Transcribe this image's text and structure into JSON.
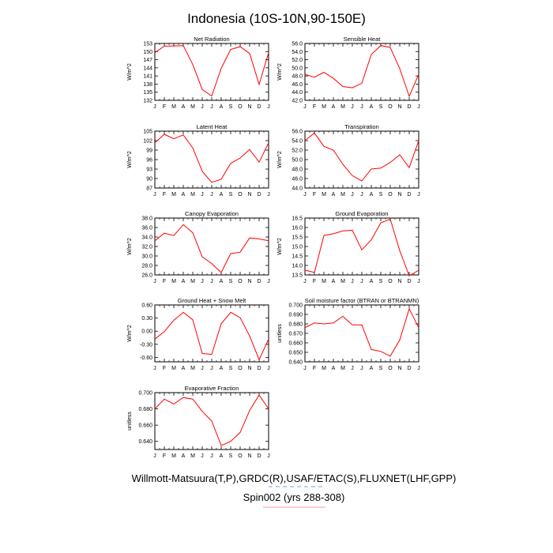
{
  "title": "Indonesia (10S-10N,90-150E)",
  "footer": {
    "line1": "Willmott-Matsuura(T,P),GRDC(R),USAF/ETAC(S),FLUXNET(LHF,GPP)",
    "line2": "Spin002 (yrs 288-308)"
  },
  "colors": {
    "series": "#ff0000",
    "axis": "#000000",
    "footer_line2_underline": "#ff9999",
    "footer_line1_dash": "#7799dd"
  },
  "chart_data": [
    {
      "type": "line",
      "title": "Net Radiation",
      "ylabel": "W/m^2",
      "categories": [
        "J",
        "F",
        "M",
        "A",
        "M",
        "J",
        "J",
        "A",
        "S",
        "O",
        "N",
        "D",
        "J"
      ],
      "ylim": [
        132,
        153
      ],
      "yticks": [
        "132",
        "135",
        "138",
        "141",
        "144",
        "147",
        "150",
        "153"
      ],
      "series": [
        {
          "values": [
            149.6,
            152.0,
            152.1,
            152.2,
            145.2,
            136.0,
            133.6,
            143.8,
            150.8,
            151.8,
            149.3,
            137.9,
            149.6
          ]
        }
      ]
    },
    {
      "type": "line",
      "title": "Sensible Heat",
      "ylabel": "W/m^2",
      "categories": [
        "J",
        "F",
        "M",
        "A",
        "M",
        "J",
        "J",
        "A",
        "S",
        "O",
        "N",
        "D",
        "J"
      ],
      "ylim": [
        42.0,
        56.0
      ],
      "yticks": [
        "42.0",
        "44.0",
        "46.0",
        "48.0",
        "50.0",
        "52.0",
        "54.0",
        "56.0"
      ],
      "series": [
        {
          "values": [
            48.4,
            47.7,
            48.9,
            47.4,
            45.4,
            45.1,
            46.2,
            53.3,
            55.5,
            55.0,
            49.8,
            43.0,
            48.4
          ]
        }
      ]
    },
    {
      "type": "line",
      "title": "Latent Heat",
      "ylabel": "W/m^2",
      "categories": [
        "J",
        "F",
        "M",
        "A",
        "M",
        "J",
        "J",
        "A",
        "S",
        "O",
        "N",
        "D",
        "J"
      ],
      "ylim": [
        87,
        105
      ],
      "yticks": [
        "87",
        "90",
        "93",
        "96",
        "99",
        "102",
        "105"
      ],
      "series": [
        {
          "values": [
            101.3,
            104.0,
            102.6,
            103.8,
            99.7,
            92.3,
            88.8,
            89.8,
            94.8,
            96.5,
            99.2,
            95.2,
            101.3
          ]
        }
      ]
    },
    {
      "type": "line",
      "title": "Transpiration",
      "ylabel": "W/m^2",
      "categories": [
        "J",
        "F",
        "M",
        "A",
        "M",
        "J",
        "J",
        "A",
        "S",
        "O",
        "N",
        "D",
        "J"
      ],
      "ylim": [
        44.0,
        56.0
      ],
      "yticks": [
        "44.0",
        "46.0",
        "48.0",
        "50.0",
        "52.0",
        "54.0",
        "56.0"
      ],
      "series": [
        {
          "values": [
            54.0,
            55.6,
            52.8,
            52.0,
            49.0,
            46.6,
            45.5,
            48.0,
            48.2,
            49.4,
            51.0,
            48.3,
            54.0
          ]
        }
      ]
    },
    {
      "type": "line",
      "title": "Canopy Evaporation",
      "ylabel": "W/m^2",
      "categories": [
        "J",
        "F",
        "M",
        "A",
        "M",
        "J",
        "J",
        "A",
        "S",
        "O",
        "N",
        "D",
        "J"
      ],
      "ylim": [
        26.0,
        38.0
      ],
      "yticks": [
        "26.0",
        "28.0",
        "30.0",
        "32.0",
        "34.0",
        "36.0",
        "38.0"
      ],
      "series": [
        {
          "values": [
            33.2,
            34.8,
            34.3,
            36.6,
            34.9,
            29.8,
            28.4,
            26.5,
            30.5,
            30.8,
            33.8,
            33.6,
            33.2
          ]
        }
      ]
    },
    {
      "type": "line",
      "title": "Ground Evaporation",
      "ylabel": "W/m^2",
      "categories": [
        "J",
        "F",
        "M",
        "A",
        "M",
        "J",
        "J",
        "A",
        "S",
        "O",
        "N",
        "D",
        "J"
      ],
      "ylim": [
        13.5,
        16.5
      ],
      "yticks": [
        "13.5",
        "14.0",
        "14.5",
        "15.0",
        "15.5",
        "16.0",
        "16.5"
      ],
      "series": [
        {
          "values": [
            13.75,
            13.63,
            15.58,
            15.67,
            15.82,
            15.86,
            14.82,
            15.35,
            16.25,
            16.44,
            14.78,
            13.45,
            13.75
          ]
        }
      ]
    },
    {
      "type": "line",
      "title": "Ground Heat + Snow Melt",
      "ylabel": "W/m^2",
      "categories": [
        "J",
        "F",
        "M",
        "A",
        "M",
        "J",
        "J",
        "A",
        "S",
        "O",
        "N",
        "D",
        "J"
      ],
      "ylim": [
        -0.7,
        0.6
      ],
      "yticks": [
        "-0.60",
        "-0.30",
        "0.00",
        "0.30",
        "0.60"
      ],
      "series": [
        {
          "values": [
            -0.18,
            -0.01,
            0.25,
            0.43,
            0.26,
            -0.51,
            -0.53,
            0.17,
            0.43,
            0.31,
            -0.11,
            -0.65,
            -0.18
          ]
        }
      ]
    },
    {
      "type": "line",
      "title": "Soil moisture factor (BTRAN or BTRANMN)",
      "ylabel": "unitless",
      "categories": [
        "J",
        "F",
        "M",
        "A",
        "M",
        "J",
        "J",
        "A",
        "S",
        "O",
        "N",
        "D",
        "J"
      ],
      "ylim": [
        0.64,
        0.7
      ],
      "yticks": [
        "0.640",
        "0.650",
        "0.660",
        "0.670",
        "0.680",
        "0.690",
        "0.700"
      ],
      "series": [
        {
          "values": [
            0.676,
            0.681,
            0.68,
            0.681,
            0.688,
            0.679,
            0.679,
            0.653,
            0.651,
            0.646,
            0.663,
            0.696,
            0.676
          ]
        }
      ]
    },
    {
      "type": "line",
      "title": "Evaporative Fraction",
      "ylabel": "unitless",
      "categories": [
        "J",
        "F",
        "M",
        "A",
        "M",
        "J",
        "J",
        "A",
        "S",
        "O",
        "N",
        "D",
        "J"
      ],
      "ylim": [
        0.63,
        0.7
      ],
      "yticks": [
        "0.640",
        "0.660",
        "0.680",
        "0.700"
      ],
      "series": [
        {
          "values": [
            0.68,
            0.692,
            0.686,
            0.694,
            0.692,
            0.677,
            0.665,
            0.635,
            0.64,
            0.651,
            0.678,
            0.697,
            0.68
          ]
        }
      ]
    }
  ]
}
